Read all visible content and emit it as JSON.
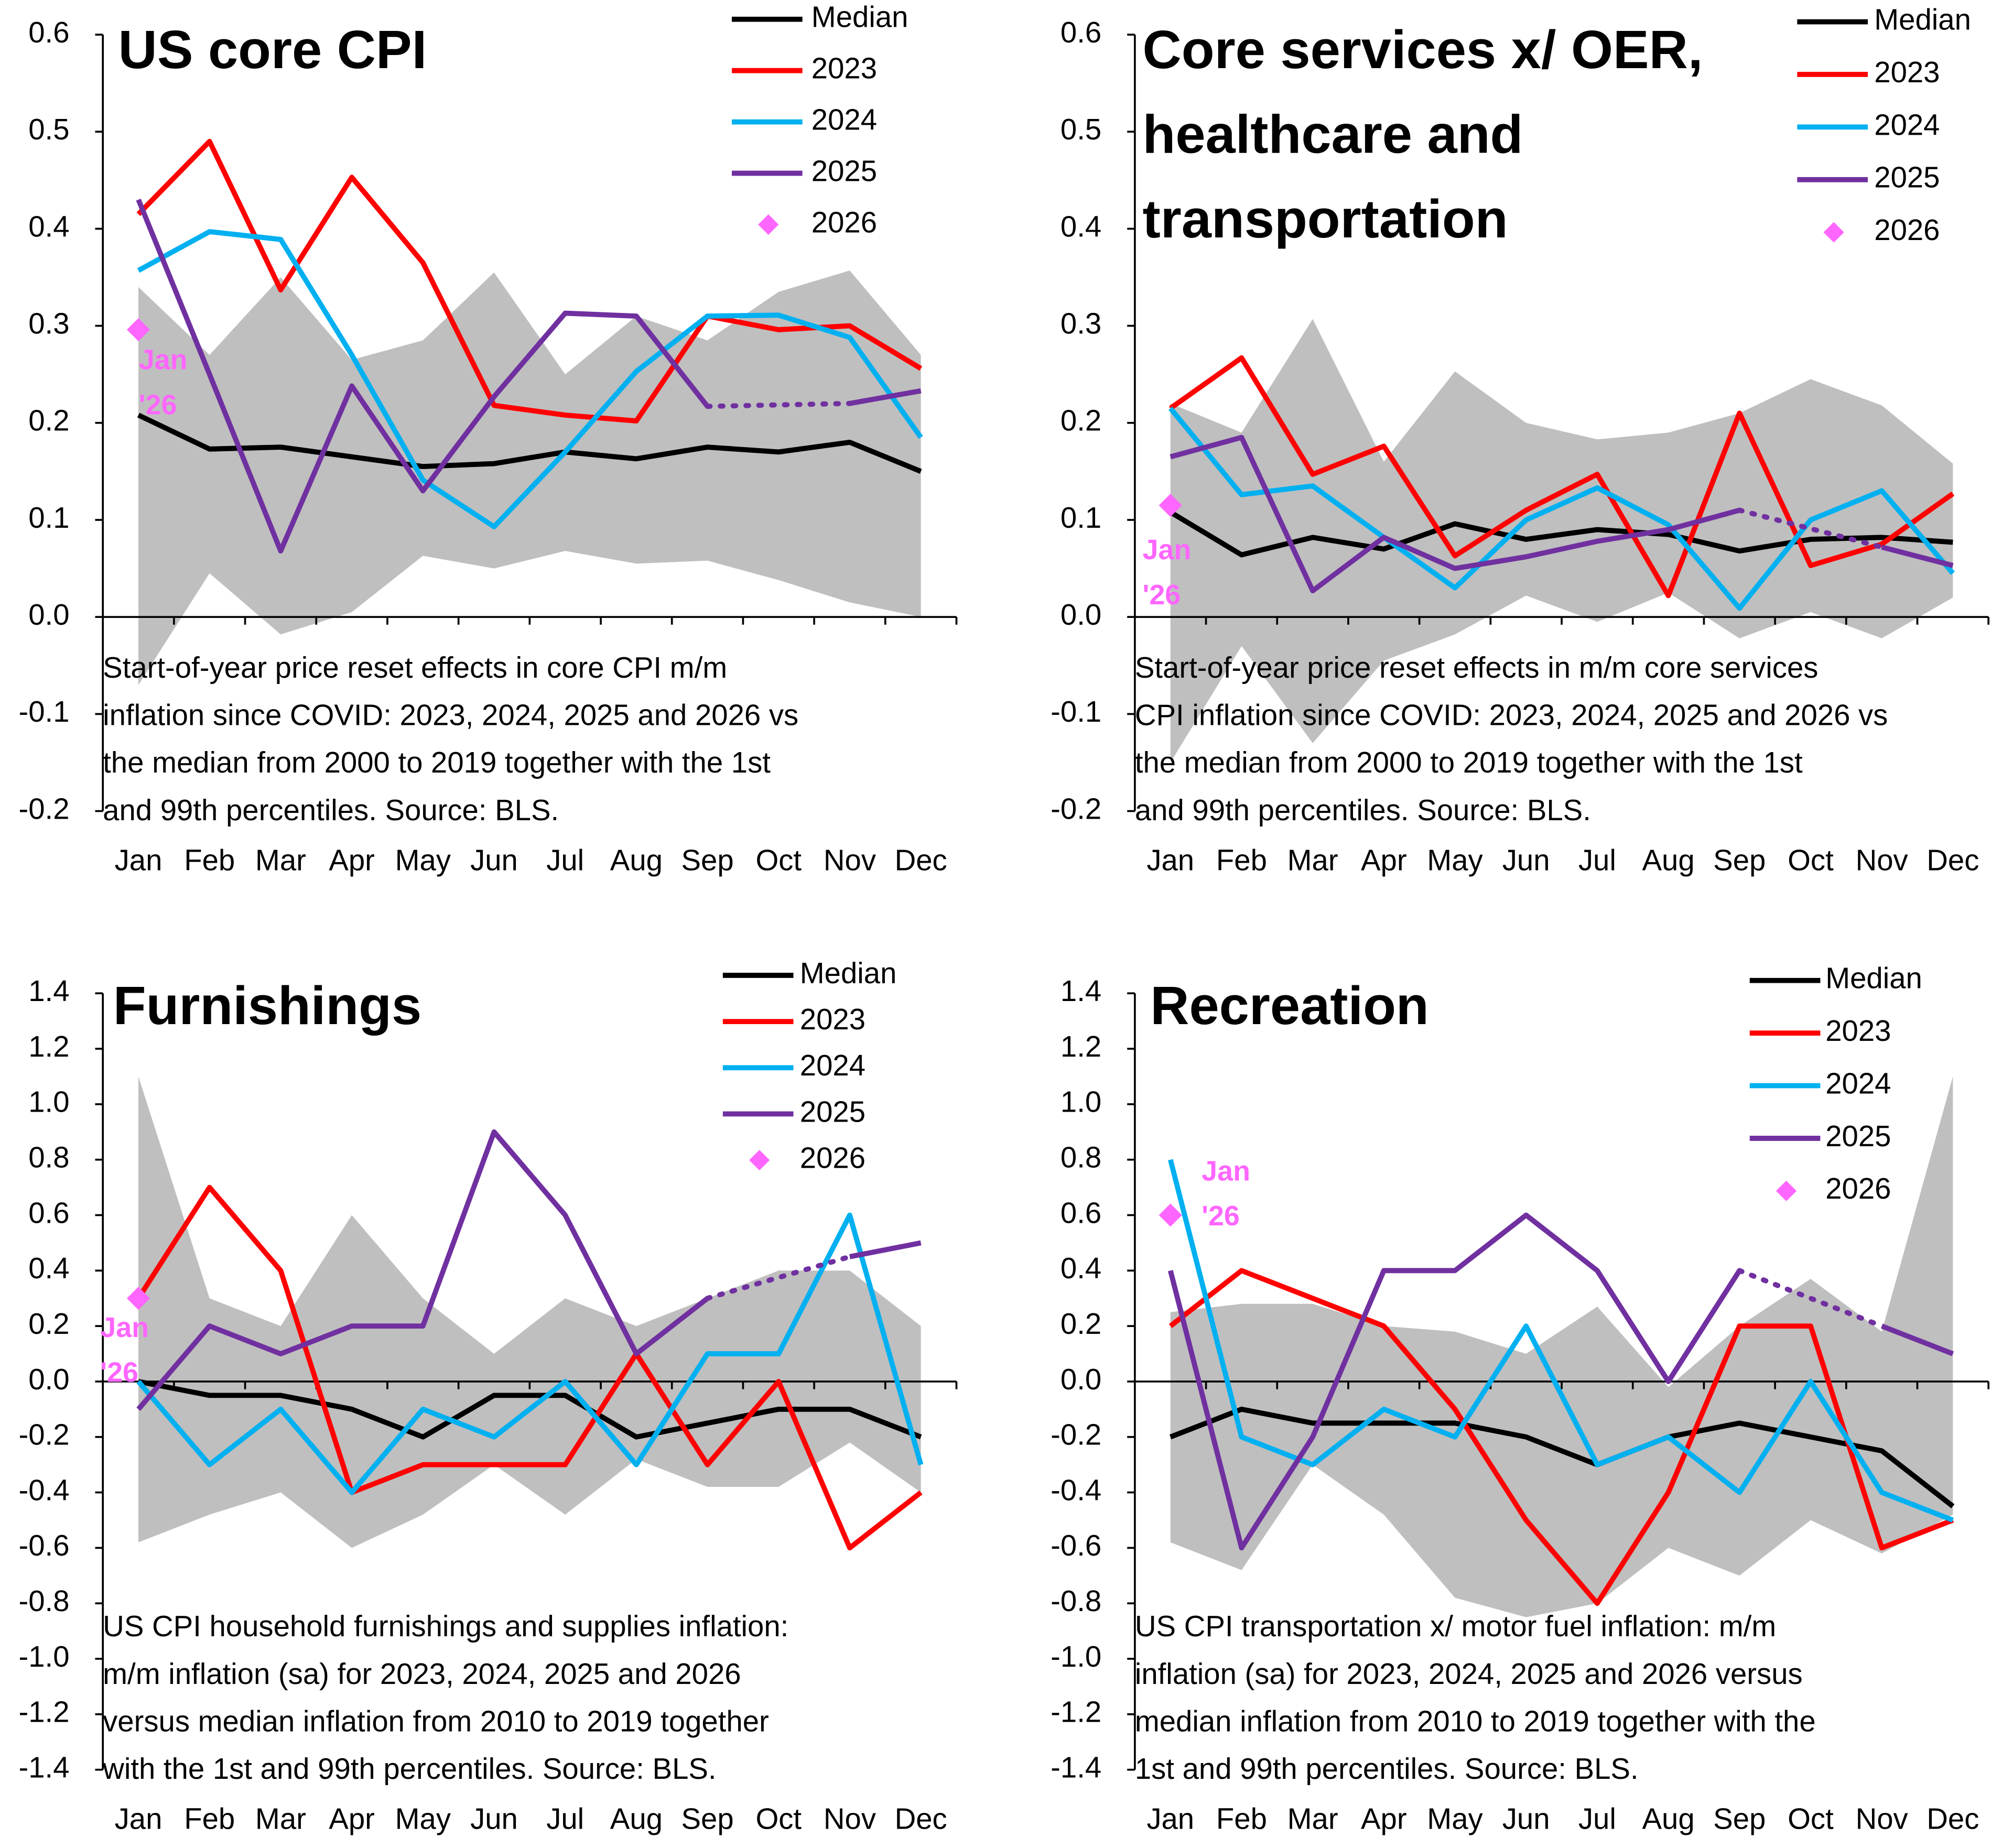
{
  "chart_data": [
    {
      "type": "line",
      "title": [
        "US core CPI"
      ],
      "categories": [
        "Jan",
        "Feb",
        "Mar",
        "Apr",
        "May",
        "Jun",
        "Jul",
        "Aug",
        "Sep",
        "Oct",
        "Nov",
        "Dec"
      ],
      "ylim": [
        -0.2,
        0.6
      ],
      "yticks": [
        -0.2,
        -0.1,
        {
          "value": 0,
          "label": "0.0"
        },
        0.1,
        0.2,
        0.3,
        0.4,
        0.5,
        0.6
      ],
      "grid": false,
      "gap_style": "dotted",
      "band": {
        "color": "#bfbfbf",
        "high": [
          0.34,
          0.27,
          0.35,
          0.265,
          0.285,
          0.355,
          0.25,
          0.31,
          0.285,
          0.335,
          0.357,
          0.27
        ],
        "low": [
          -0.07,
          0.045,
          -0.018,
          0.005,
          0.063,
          0.05,
          0.068,
          0.055,
          0.058,
          0.038,
          0.015,
          0.0
        ]
      },
      "series": [
        {
          "name": "Median",
          "color": "#000000",
          "values": [
            0.208,
            0.173,
            0.175,
            0.165,
            0.155,
            0.158,
            0.17,
            0.163,
            0.175,
            0.17,
            0.18,
            0.15
          ]
        },
        {
          "name": "2023",
          "color": "#ff0000",
          "values": [
            0.415,
            0.49,
            0.337,
            0.453,
            0.365,
            0.218,
            0.208,
            0.202,
            0.31,
            0.296,
            0.3,
            0.256
          ]
        },
        {
          "name": "2024",
          "color": "#00b0f0",
          "values": [
            0.357,
            0.397,
            0.389,
            0.27,
            0.141,
            0.093,
            0.17,
            0.253,
            0.31,
            0.311,
            0.288,
            0.185
          ]
        },
        {
          "name": "2025",
          "color": "#7030a0",
          "values": [
            0.43,
            0.25,
            0.068,
            0.238,
            0.13,
            0.227,
            0.313,
            0.31,
            0.217,
            null,
            0.22,
            0.233
          ]
        },
        {
          "name": "2026",
          "color": "#ff66ff",
          "marker": "diamond",
          "values": [
            0.296,
            null,
            null,
            null,
            null,
            null,
            null,
            null,
            null,
            null,
            null,
            null
          ]
        }
      ],
      "annotation": [
        "Jan",
        "'26"
      ],
      "note": [
        "Start-of-year price reset effects in core CPI m/m",
        "inflation since COVID: 2023, 2024, 2025 and 2026 vs",
        "the median from 2000 to 2019 together with the 1st",
        "and 99th percentiles. Source: BLS."
      ]
    },
    {
      "type": "line",
      "title": [
        "Core services x/ OER,",
        "healthcare and",
        "transportation"
      ],
      "categories": [
        "Jan",
        "Feb",
        "Mar",
        "Apr",
        "May",
        "Jun",
        "Jul",
        "Aug",
        "Sep",
        "Oct",
        "Nov",
        "Dec"
      ],
      "ylim": [
        -0.2,
        0.6
      ],
      "yticks": [
        -0.2,
        -0.1,
        {
          "value": 0,
          "label": "0.0"
        },
        0.1,
        0.2,
        0.3,
        0.4,
        0.5,
        0.6
      ],
      "grid": false,
      "gap_style": "dotted",
      "band": {
        "color": "#bfbfbf",
        "high": [
          0.22,
          0.19,
          0.307,
          0.16,
          0.253,
          0.2,
          0.183,
          0.19,
          0.21,
          0.245,
          0.218,
          0.158
        ],
        "low": [
          -0.15,
          -0.03,
          -0.13,
          -0.045,
          -0.018,
          0.022,
          -0.005,
          0.025,
          -0.022,
          0.005,
          -0.022,
          0.02
        ]
      },
      "series": [
        {
          "name": "Median",
          "color": "#000000",
          "values": [
            0.108,
            0.064,
            0.082,
            0.07,
            0.096,
            0.08,
            0.09,
            0.085,
            0.068,
            0.08,
            0.082,
            0.077
          ]
        },
        {
          "name": "2023",
          "color": "#ff0000",
          "values": [
            0.215,
            0.267,
            0.147,
            0.176,
            0.063,
            0.11,
            0.147,
            0.022,
            0.21,
            0.053,
            0.075,
            0.127
          ]
        },
        {
          "name": "2024",
          "color": "#00b0f0",
          "values": [
            0.215,
            0.126,
            0.135,
            0.082,
            0.03,
            0.1,
            0.133,
            0.095,
            0.009,
            0.1,
            0.13,
            0.045
          ]
        },
        {
          "name": "2025",
          "color": "#7030a0",
          "values": [
            0.165,
            0.185,
            0.027,
            0.082,
            0.05,
            0.062,
            0.078,
            0.09,
            0.11,
            null,
            0.072,
            0.053
          ]
        },
        {
          "name": "2026",
          "color": "#ff66ff",
          "marker": "diamond",
          "values": [
            0.115,
            null,
            null,
            null,
            null,
            null,
            null,
            null,
            null,
            null,
            null,
            null
          ]
        }
      ],
      "annotation": [
        "Jan",
        "'26"
      ],
      "note": [
        "Start-of-year price reset effects in m/m core services",
        "CPI inflation since COVID: 2023, 2024, 2025 and 2026 vs",
        "the median from 2000 to 2019 together with the 1st",
        "and 99th percentiles. Source: BLS."
      ]
    },
    {
      "type": "line",
      "title": [
        "Furnishings"
      ],
      "categories": [
        "Jan",
        "Feb",
        "Mar",
        "Apr",
        "May",
        "Jun",
        "Jul",
        "Aug",
        "Sep",
        "Oct",
        "Nov",
        "Dec"
      ],
      "ylim": [
        -1.4,
        1.4
      ],
      "yticks": [
        -1.4,
        -1.2,
        {
          "value": -1,
          "label": "-1.0"
        },
        -0.8,
        -0.6,
        -0.4,
        -0.2,
        {
          "value": 0,
          "label": "0.0"
        },
        0.2,
        0.4,
        0.6,
        0.8,
        {
          "value": 1,
          "label": "1.0"
        },
        1.2,
        1.4
      ],
      "grid": false,
      "gap_style": "dotted",
      "band": {
        "color": "#bfbfbf",
        "high": [
          1.1,
          0.3,
          0.2,
          0.6,
          0.3,
          0.1,
          0.3,
          0.2,
          0.3,
          0.4,
          0.4,
          0.2
        ],
        "low": [
          -0.58,
          -0.48,
          -0.4,
          -0.6,
          -0.48,
          -0.3,
          -0.48,
          -0.28,
          -0.38,
          -0.38,
          -0.22,
          -0.4
        ]
      },
      "series": [
        {
          "name": "Median",
          "color": "#000000",
          "values": [
            0.0,
            -0.05,
            -0.05,
            -0.1,
            -0.2,
            -0.05,
            -0.05,
            -0.2,
            -0.15,
            -0.1,
            -0.1,
            -0.2
          ]
        },
        {
          "name": "2023",
          "color": "#ff0000",
          "values": [
            0.3,
            0.7,
            0.4,
            -0.4,
            -0.3,
            -0.3,
            -0.3,
            0.1,
            -0.3,
            0.0,
            -0.6,
            -0.4
          ]
        },
        {
          "name": "2024",
          "color": "#00b0f0",
          "values": [
            0.0,
            -0.3,
            -0.1,
            -0.4,
            -0.1,
            -0.2,
            0.0,
            -0.3,
            0.1,
            0.1,
            0.6,
            -0.3
          ]
        },
        {
          "name": "2025",
          "color": "#7030a0",
          "values": [
            -0.1,
            0.2,
            0.1,
            0.2,
            0.2,
            0.9,
            0.6,
            0.1,
            0.3,
            null,
            0.45,
            0.5
          ]
        },
        {
          "name": "2026",
          "color": "#ff66ff",
          "marker": "diamond",
          "values": [
            0.3,
            null,
            null,
            null,
            null,
            null,
            null,
            null,
            null,
            null,
            null,
            null
          ]
        }
      ],
      "annotation": [
        "Jan",
        "'26"
      ],
      "note": [
        "US CPI household furnishings and supplies inflation:",
        "m/m inflation (sa) for 2023, 2024, 2025 and 2026",
        "versus median inflation from 2010 to 2019 together",
        "with the 1st and 99th percentiles. Source: BLS."
      ]
    },
    {
      "type": "line",
      "title": [
        "Recreation"
      ],
      "categories": [
        "Jan",
        "Feb",
        "Mar",
        "Apr",
        "May",
        "Jun",
        "Jul",
        "Aug",
        "Sep",
        "Oct",
        "Nov",
        "Dec"
      ],
      "ylim": [
        -1.4,
        1.4
      ],
      "yticks": [
        -1.4,
        -1.2,
        {
          "value": -1,
          "label": "-1.0"
        },
        -0.8,
        -0.6,
        -0.4,
        -0.2,
        {
          "value": 0,
          "label": "0.0"
        },
        0.2,
        0.4,
        0.6,
        0.8,
        {
          "value": 1,
          "label": "1.0"
        },
        1.2,
        1.4
      ],
      "grid": false,
      "gap_style": "dotted",
      "band": {
        "color": "#bfbfbf",
        "high": [
          0.25,
          0.28,
          0.28,
          0.2,
          0.18,
          0.1,
          0.27,
          -0.02,
          0.2,
          0.37,
          0.18,
          1.1
        ],
        "low": [
          -0.58,
          -0.68,
          -0.3,
          -0.48,
          -0.78,
          -0.85,
          -0.8,
          -0.6,
          -0.7,
          -0.5,
          -0.62,
          -0.48
        ]
      },
      "series": [
        {
          "name": "Median",
          "color": "#000000",
          "values": [
            -0.2,
            -0.1,
            -0.15,
            -0.15,
            -0.15,
            -0.2,
            -0.3,
            -0.2,
            -0.15,
            -0.2,
            -0.25,
            -0.45
          ]
        },
        {
          "name": "2023",
          "color": "#ff0000",
          "values": [
            0.2,
            0.4,
            0.3,
            0.2,
            -0.1,
            -0.5,
            -0.8,
            -0.4,
            0.2,
            0.2,
            -0.6,
            -0.5
          ]
        },
        {
          "name": "2024",
          "color": "#00b0f0",
          "values": [
            0.8,
            -0.2,
            -0.3,
            -0.1,
            -0.2,
            0.2,
            -0.3,
            -0.2,
            -0.4,
            0.0,
            -0.4,
            -0.5
          ]
        },
        {
          "name": "2025",
          "color": "#7030a0",
          "values": [
            0.4,
            -0.6,
            -0.2,
            0.4,
            0.4,
            0.6,
            0.4,
            0.0,
            0.4,
            null,
            0.2,
            0.1
          ]
        },
        {
          "name": "2026",
          "color": "#ff66ff",
          "marker": "diamond",
          "values": [
            0.6,
            null,
            null,
            null,
            null,
            null,
            null,
            null,
            null,
            null,
            null,
            null
          ]
        }
      ],
      "annotation": [
        "Jan",
        "'26"
      ],
      "note": [
        "US CPI transportation x/ motor fuel inflation: m/m",
        "inflation (sa) for 2023, 2024, 2025 and 2026 versus",
        "median inflation from 2010 to 2019 together with the",
        "1st and 99th percentiles. Source: BLS."
      ]
    }
  ]
}
